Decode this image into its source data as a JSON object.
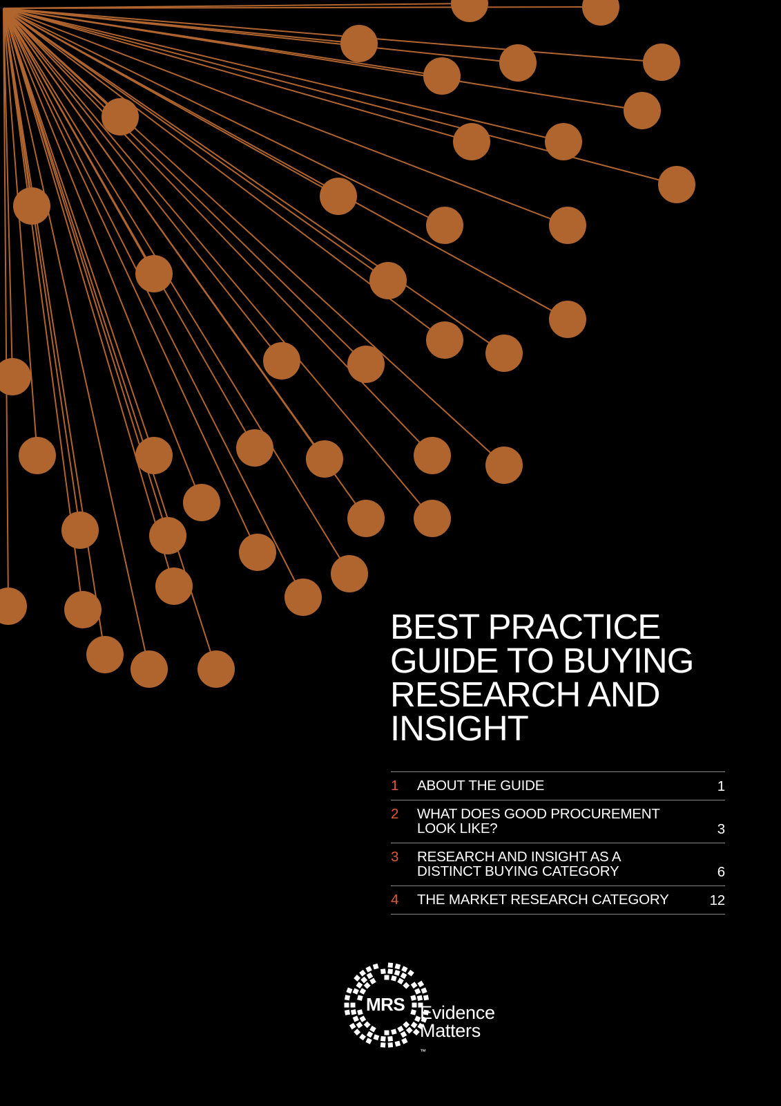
{
  "document": {
    "title_lines": [
      "BEST PRACTICE",
      "GUIDE TO BUYING",
      "RESEARCH AND",
      "INSIGHT"
    ],
    "accent_color": "#b0652f",
    "number_color": "#e0573a"
  },
  "toc": [
    {
      "number": "1",
      "label_lines": [
        "ABOUT THE GUIDE"
      ],
      "page": "1"
    },
    {
      "number": "2",
      "label_lines": [
        "WHAT DOES GOOD PROCUREMENT",
        "LOOK LIKE?"
      ],
      "page": "3"
    },
    {
      "number": "3",
      "label_lines": [
        "RESEARCH AND INSIGHT AS A",
        "DISTINCT BUYING CATEGORY"
      ],
      "page": "6"
    },
    {
      "number": "4",
      "label_lines": [
        "THE MARKET RESEARCH CATEGORY"
      ],
      "page": "12"
    }
  ],
  "logo": {
    "mark": "MRS",
    "line1": "Evidence",
    "line2": "Matters",
    "trademark": "™",
    "icon": "mrs-checker-ring-logo"
  }
}
